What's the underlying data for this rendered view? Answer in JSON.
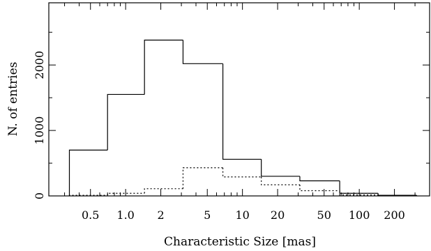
{
  "chart_data": {
    "type": "bar",
    "title": "",
    "xlabel": "Characteristic Size [mas]",
    "ylabel": "N. of entries",
    "xscale": "log",
    "xlim": [
      0.22,
      400
    ],
    "ylim": [
      0,
      2950
    ],
    "x_ticks": [
      0.5,
      1.0,
      2,
      5,
      10,
      20,
      50,
      100,
      200
    ],
    "x_tick_labels": [
      "0.5",
      "1.0",
      "2",
      "5",
      "10",
      "20",
      "50",
      "100",
      "200"
    ],
    "y_ticks": [
      0,
      1000,
      2000
    ],
    "y_tick_labels": [
      "0",
      "1000",
      "2000"
    ],
    "grid": false,
    "legend": "none",
    "bin_edges": [
      0.33,
      0.7,
      1.45,
      3.1,
      6.8,
      14.5,
      31,
      68,
      145,
      310
    ],
    "series": [
      {
        "style": "solid",
        "color": "#000000",
        "values": [
          700,
          1550,
          2380,
          2020,
          560,
          300,
          230,
          40,
          10
        ]
      },
      {
        "style": "dotted",
        "color": "#000000",
        "values": [
          10,
          40,
          110,
          430,
          290,
          170,
          80,
          15,
          5
        ]
      }
    ]
  }
}
